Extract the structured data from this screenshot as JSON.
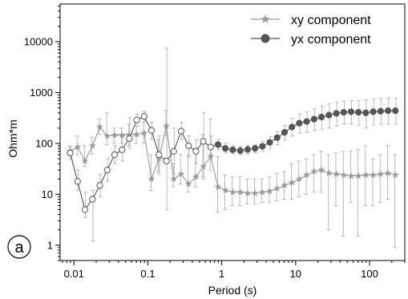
{
  "chart_data": {
    "type": "scatter",
    "title": "",
    "xlabel": "Period (s)",
    "ylabel": "Ohm*m",
    "x_scale": "log",
    "y_scale": "log",
    "xlim": [
      0.0065,
      300
    ],
    "ylim": [
      0.5,
      55000
    ],
    "x_ticks": [
      0.01,
      0.1,
      1,
      10,
      100
    ],
    "x_tick_labels": [
      "0.01",
      "0.1",
      "1",
      "10",
      "100"
    ],
    "y_ticks": [
      1,
      10,
      100,
      1000,
      10000
    ],
    "y_tick_labels": [
      "1",
      "10",
      "100",
      "1000",
      "10000"
    ],
    "grid": false,
    "legend_position": "top-right",
    "panel_label": "a",
    "colors": {
      "xy": "#9a9a9a",
      "yx": "#555555",
      "errorbar": "#aaaaaa"
    },
    "series": [
      {
        "name": "xy component",
        "marker": "star",
        "x": [
          0.0089,
          0.0112,
          0.0141,
          0.0178,
          0.0224,
          0.0282,
          0.0355,
          0.0447,
          0.0562,
          0.0708,
          0.0891,
          0.112,
          0.141,
          0.178,
          0.224,
          0.282,
          0.355,
          0.447,
          0.562,
          0.708,
          0.891,
          1.12,
          1.41,
          1.78,
          2.24,
          2.82,
          3.55,
          4.47,
          5.62,
          7.08,
          8.91,
          11.2,
          14.1,
          17.8,
          22.4,
          28.2,
          35.5,
          44.7,
          56.2,
          70.8,
          89.1,
          112,
          141,
          178,
          224
        ],
        "y": [
          70,
          85,
          45,
          90,
          210,
          140,
          145,
          145,
          148,
          150,
          160,
          20,
          50,
          220,
          20,
          25,
          16,
          22,
          35,
          55,
          14,
          12,
          11,
          11,
          10.5,
          10.5,
          11,
          11.5,
          13,
          15,
          17,
          20,
          24,
          28,
          30,
          26,
          25,
          24,
          23,
          23,
          24,
          24,
          25,
          26,
          24
        ],
        "err_lo": [
          58,
          60,
          35,
          62,
          150,
          95,
          100,
          100,
          90,
          100,
          100,
          12,
          28,
          140,
          14,
          16,
          11,
          14,
          22,
          30,
          4.5,
          5,
          6,
          6,
          6.5,
          6.5,
          7,
          7,
          7.5,
          8,
          8,
          9,
          10,
          11,
          11,
          2,
          6,
          1.5,
          7,
          1.5,
          6,
          6,
          7,
          8,
          0.9
        ],
        "err_hi": [
          90,
          140,
          90,
          130,
          300,
          400,
          200,
          200,
          240,
          220,
          250,
          60,
          120,
          450,
          40,
          60,
          60,
          80,
          150,
          300,
          55,
          24,
          22,
          22,
          20,
          20,
          20,
          22,
          26,
          28,
          40,
          45,
          50,
          60,
          70,
          60,
          65,
          70,
          70,
          75,
          90,
          50,
          60,
          90,
          60
        ]
      },
      {
        "name": "yx component",
        "marker": "circle",
        "x": [
          0.0089,
          0.0112,
          0.0141,
          0.0178,
          0.0224,
          0.0282,
          0.0355,
          0.0447,
          0.0562,
          0.0708,
          0.0891,
          0.112,
          0.141,
          0.178,
          0.224,
          0.282,
          0.355,
          0.447,
          0.562,
          0.708,
          0.891,
          1.12,
          1.41,
          1.78,
          2.24,
          2.82,
          3.55,
          4.47,
          5.62,
          7.08,
          8.91,
          11.2,
          14.1,
          17.8,
          22.4,
          28.2,
          35.5,
          44.7,
          56.2,
          70.8,
          89.1,
          112,
          141,
          178,
          224
        ],
        "y": [
          65,
          18,
          5,
          8,
          15,
          30,
          60,
          75,
          125,
          290,
          340,
          180,
          60,
          45,
          70,
          175,
          90,
          70,
          110,
          85,
          95,
          80,
          75,
          72,
          76,
          80,
          88,
          105,
          130,
          165,
          210,
          250,
          270,
          300,
          330,
          360,
          390,
          410,
          420,
          410,
          400,
          420,
          430,
          440,
          440
        ],
        "filled": [
          false,
          false,
          false,
          false,
          false,
          false,
          false,
          false,
          false,
          false,
          false,
          false,
          false,
          false,
          false,
          false,
          false,
          false,
          false,
          false,
          true,
          true,
          true,
          true,
          true,
          true,
          true,
          true,
          true,
          true,
          true,
          true,
          true,
          true,
          true,
          true,
          true,
          true,
          true,
          true,
          true,
          true,
          true,
          true,
          true
        ],
        "err_lo": [
          50,
          12,
          3.5,
          1.2,
          9,
          18,
          40,
          45,
          80,
          220,
          270,
          120,
          25,
          5,
          25,
          120,
          55,
          40,
          20,
          60,
          75,
          65,
          62,
          60,
          62,
          65,
          70,
          80,
          95,
          115,
          140,
          160,
          165,
          180,
          190,
          200,
          220,
          240,
          240,
          230,
          200,
          230,
          240,
          240,
          240
        ],
        "err_hi": [
          85,
          30,
          11,
          12,
          25,
          50,
          90,
          140,
          320,
          380,
          420,
          260,
          140,
          7500,
          200,
          260,
          140,
          120,
          400,
          140,
          120,
          100,
          90,
          88,
          92,
          95,
          110,
          135,
          170,
          225,
          310,
          380,
          420,
          480,
          540,
          600,
          640,
          680,
          700,
          700,
          720,
          740,
          760,
          780,
          780
        ]
      }
    ]
  }
}
